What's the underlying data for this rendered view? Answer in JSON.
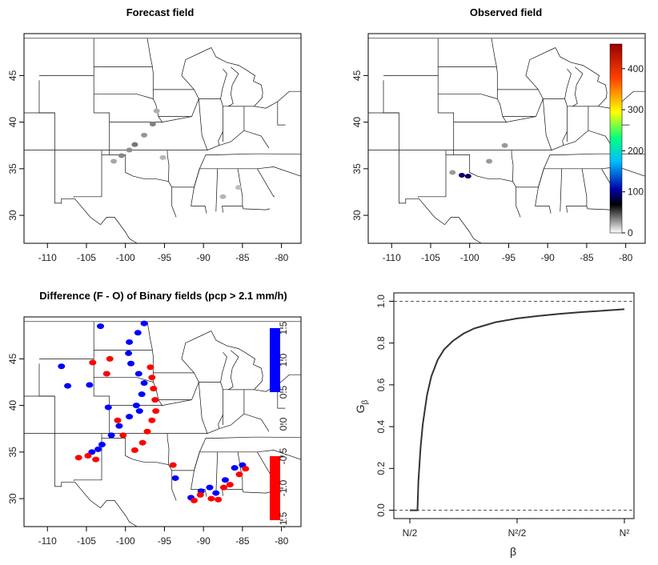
{
  "chart_data": [
    {
      "type": "heatmap",
      "title": "Forecast field",
      "x_ticks": [
        -110,
        -105,
        -100,
        -95,
        -90,
        -85,
        -80
      ],
      "y_ticks": [
        30,
        35,
        40,
        45
      ],
      "xlim": [
        -113,
        -77.5
      ],
      "ylim": [
        27,
        49.5
      ],
      "precip_cells": [
        {
          "lon": -101.5,
          "lat": 35.8,
          "value": 40
        },
        {
          "lon": -100.5,
          "lat": 36.4,
          "value": 60
        },
        {
          "lon": -99.5,
          "lat": 37.0,
          "value": 55
        },
        {
          "lon": -98.8,
          "lat": 37.6,
          "value": 70
        },
        {
          "lon": -97.6,
          "lat": 38.6,
          "value": 50
        },
        {
          "lon": -96.5,
          "lat": 39.8,
          "value": 65
        },
        {
          "lon": -96.0,
          "lat": 41.2,
          "value": 35
        },
        {
          "lon": -95.2,
          "lat": 36.2,
          "value": 30
        },
        {
          "lon": -87.5,
          "lat": 32.0,
          "value": 30
        },
        {
          "lon": -85.5,
          "lat": 33.0,
          "value": 25
        }
      ]
    },
    {
      "type": "heatmap",
      "title": "Observed field",
      "x_ticks": [
        -110,
        -105,
        -100,
        -95,
        -90,
        -85,
        -80
      ],
      "y_ticks": [
        30,
        35,
        40,
        45
      ],
      "xlim": [
        -113,
        -77.5
      ],
      "ylim": [
        27,
        49.5
      ],
      "colorbar": {
        "ticks": [
          0,
          100,
          200,
          300,
          400
        ],
        "range": [
          0,
          460
        ],
        "colors": [
          "#ffffff",
          "#000000",
          "#0000aa",
          "#00bfff",
          "#00ff80",
          "#ffff00",
          "#ff4000",
          "#990000"
        ]
      },
      "precip_cells": [
        {
          "lon": -101.0,
          "lat": 34.3,
          "value": 120
        },
        {
          "lon": -100.2,
          "lat": 34.2,
          "value": 90
        },
        {
          "lon": -102.2,
          "lat": 34.6,
          "value": 40
        },
        {
          "lon": -97.5,
          "lat": 35.8,
          "value": 30
        },
        {
          "lon": -95.5,
          "lat": 37.5,
          "value": 25
        }
      ]
    },
    {
      "type": "heatmap",
      "title": "Difference (F - O) of Binary fields (pcp > 2.1 mm/h)",
      "x_ticks": [
        -110,
        -105,
        -100,
        -95,
        -90,
        -85,
        -80
      ],
      "y_ticks": [
        30,
        35,
        40,
        45
      ],
      "xlim": [
        -113,
        -77.5
      ],
      "ylim": [
        27,
        49.5
      ],
      "colorbar": {
        "ticks": [
          -1.5,
          -1.0,
          -0.5,
          0.0,
          0.5,
          1.0,
          1.5
        ],
        "tick_labels": [
          "-1.5",
          "-1.0",
          "-0.5",
          "0.0",
          "0.5",
          "1.0",
          "1.5"
        ],
        "range": [
          -1.5,
          1.5
        ],
        "colors": {
          "positive": "#0000ff",
          "negative": "#ff0000",
          "zero": "#ffffff"
        }
      },
      "blobs": [
        {
          "value": 1,
          "points": [
            [
              -104.3,
              35.0
            ],
            [
              -103.0,
              35.8
            ],
            [
              -101.8,
              36.8
            ],
            [
              -100.8,
              37.8
            ],
            [
              -99.5,
              38.8
            ],
            [
              -98.6,
              40.0
            ],
            [
              -97.9,
              41.2
            ],
            [
              -97.6,
              42.4
            ],
            [
              -98.3,
              43.4
            ],
            [
              -99.3,
              44.5
            ],
            [
              -99.6,
              45.6
            ],
            [
              -99.5,
              46.8
            ],
            [
              -98.4,
              47.8
            ],
            [
              -97.6,
              48.8
            ],
            [
              -103.2,
              48.5
            ],
            [
              -108.2,
              44.2
            ],
            [
              -107.4,
              42.1
            ],
            [
              -104.6,
              42.2
            ],
            [
              -102.2,
              39.8
            ],
            [
              -98.2,
              39.4
            ],
            [
              -103.5,
              35.3
            ],
            [
              -90.3,
              30.8
            ],
            [
              -89.2,
              31.2
            ],
            [
              -88.4,
              30.6
            ],
            [
              -87.2,
              32.0
            ],
            [
              -86.0,
              33.3
            ],
            [
              -85.0,
              33.6
            ],
            [
              -93.6,
              32.2
            ],
            [
              -91.6,
              30.1
            ]
          ]
        },
        {
          "value": -1,
          "points": [
            [
              -96.8,
              44.1
            ],
            [
              -96.6,
              43.0
            ],
            [
              -96.4,
              41.8
            ],
            [
              -96.2,
              40.6
            ],
            [
              -96.1,
              39.4
            ],
            [
              -96.6,
              38.4
            ],
            [
              -97.2,
              37.2
            ],
            [
              -97.8,
              36.0
            ],
            [
              -98.8,
              35.2
            ],
            [
              -100.3,
              36.8
            ],
            [
              -101.0,
              38.4
            ],
            [
              -102.4,
              43.4
            ],
            [
              -104.2,
              44.6
            ],
            [
              -102.0,
              45.0
            ],
            [
              -104.8,
              34.6
            ],
            [
              -103.8,
              34.2
            ],
            [
              -106.0,
              34.4
            ],
            [
              -85.4,
              32.6
            ],
            [
              -84.6,
              33.2
            ],
            [
              -86.6,
              31.5
            ],
            [
              -90.4,
              30.4
            ],
            [
              -91.2,
              29.8
            ],
            [
              -89.0,
              30.0
            ],
            [
              -93.9,
              33.6
            ],
            [
              -87.4,
              31.2
            ],
            [
              -88.1,
              29.9
            ]
          ]
        }
      ]
    },
    {
      "type": "line",
      "x_tick_labels": [
        "N/2",
        "N²/2",
        "N²"
      ],
      "y_ticks": [
        0.0,
        0.2,
        0.4,
        0.6,
        0.8,
        1.0
      ],
      "ylim": [
        -0.04,
        1.04
      ],
      "xlabel": "β",
      "ylabel": "Gβ",
      "reference_lines": [
        0.0,
        1.0
      ],
      "series": [
        {
          "x": [
            0.0,
            0.035,
            0.036,
            0.04,
            0.05,
            0.06,
            0.08,
            0.1,
            0.13,
            0.16,
            0.2,
            0.25,
            0.3,
            0.35,
            0.4,
            0.5,
            0.6,
            0.7,
            0.8,
            0.9,
            1.0
          ],
          "values": [
            0.0,
            0.0,
            0.01,
            0.14,
            0.3,
            0.41,
            0.55,
            0.64,
            0.72,
            0.77,
            0.81,
            0.845,
            0.87,
            0.885,
            0.9,
            0.918,
            0.93,
            0.94,
            0.948,
            0.955,
            0.962
          ]
        }
      ]
    }
  ]
}
